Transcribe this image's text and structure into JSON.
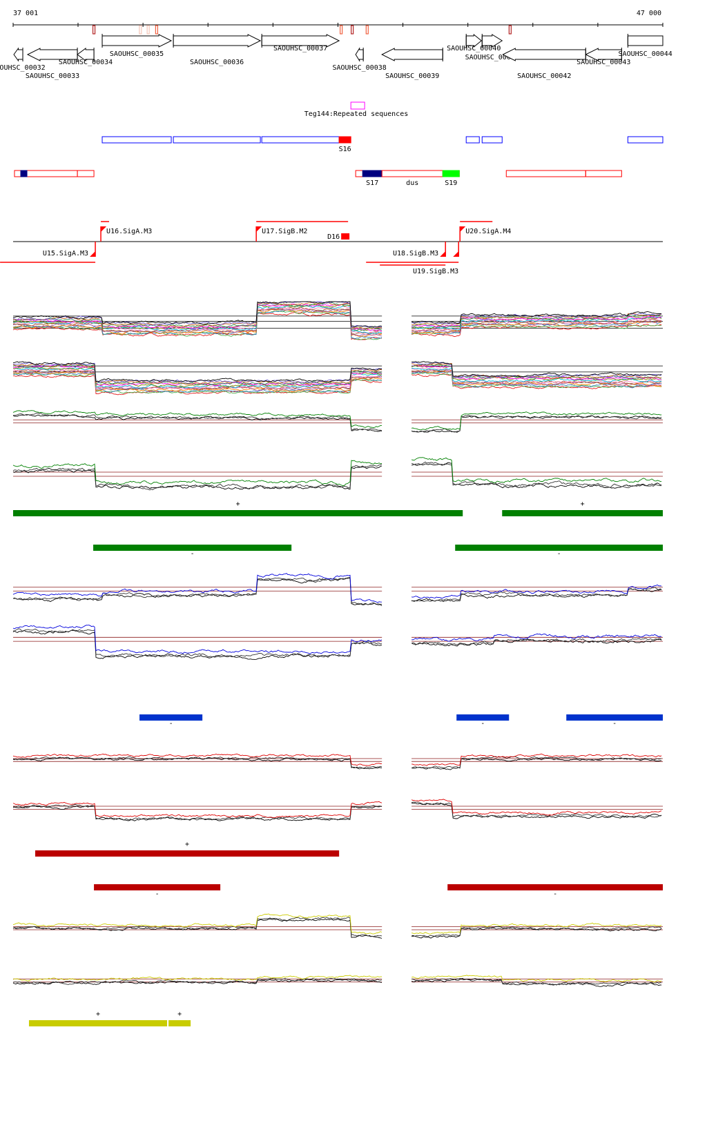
{
  "ruler": {
    "start_label": "37 001",
    "end_label": "47 000",
    "start": 37001,
    "end": 47000,
    "tick_step": 1000,
    "markers": [
      {
        "bp": 38245,
        "color": "#b22222"
      },
      {
        "bp": 38960,
        "color": "#f5c6b8"
      },
      {
        "bp": 39080,
        "color": "#f5c6b8"
      },
      {
        "bp": 39210,
        "color": "#f06040"
      },
      {
        "bp": 42050,
        "color": "#f06040"
      },
      {
        "bp": 42220,
        "color": "#b22222"
      },
      {
        "bp": 42450,
        "color": "#f06040"
      },
      {
        "bp": 44650,
        "color": "#b22222"
      }
    ]
  },
  "genes": [
    {
      "name": "SAOUHSC_00032",
      "start": 37012,
      "end": 37150,
      "strand": "-"
    },
    {
      "name": "SAOUHSC_00033",
      "start": 37224,
      "end": 37990,
      "strand": "-"
    },
    {
      "name": "SAOUHSC_00034",
      "start": 37990,
      "end": 38245,
      "strand": "-"
    },
    {
      "name": "SAOUHSC_00035",
      "start": 38372,
      "end": 39435,
      "strand": "+"
    },
    {
      "name": "SAOUHSC_00036",
      "start": 39467,
      "end": 40806,
      "strand": "+"
    },
    {
      "name": "SAOUHSC_00037",
      "start": 40828,
      "end": 42018,
      "strand": "+"
    },
    {
      "name": "SAOUHSC_00038",
      "start": 42273,
      "end": 42390,
      "strand": "-"
    },
    {
      "name": "SAOUHSC_00039",
      "start": 42677,
      "end": 43613,
      "strand": "-"
    },
    {
      "name": "SAOUHSC_00040",
      "start": 43974,
      "end": 44208,
      "strand": "+"
    },
    {
      "name": "SAOUHSC_00041",
      "start": 44219,
      "end": 44527,
      "strand": "+"
    },
    {
      "name": "SAOUHSC_00042",
      "start": 44538,
      "end": 45813,
      "strand": "-"
    },
    {
      "name": "SAOUHSC_00043",
      "start": 45813,
      "end": 46366,
      "strand": "-"
    },
    {
      "name": "SAOUHSC_00044",
      "start": 46462,
      "end": 47000,
      "strand": "+"
    }
  ],
  "repeat": {
    "label": "Teg144:Repeated sequences",
    "start": 42199,
    "end": 42411,
    "color": "#ff00ff"
  },
  "upper_segments": [
    {
      "start": 38372,
      "end": 39435,
      "label": "",
      "color": "#0000ff",
      "fill": false
    },
    {
      "start": 39467,
      "end": 40806,
      "label": "",
      "color": "#0000ff",
      "fill": false
    },
    {
      "start": 40828,
      "end": 42018,
      "label": "",
      "color": "#0000ff",
      "fill": false
    },
    {
      "start": 42018,
      "end": 42199,
      "label": "S16",
      "color": "#ff0000",
      "fill": true
    },
    {
      "start": 43974,
      "end": 44176,
      "label": "",
      "color": "#0000ff",
      "fill": false
    },
    {
      "start": 44219,
      "end": 44527,
      "label": "",
      "color": "#0000ff",
      "fill": false
    },
    {
      "start": 46462,
      "end": 47000,
      "label": "",
      "color": "#0000ff",
      "fill": false
    }
  ],
  "lower_segments": [
    {
      "start": 37022,
      "end": 37990,
      "label": "",
      "color": "#ff0000",
      "fill": false
    },
    {
      "start": 37118,
      "end": 37214,
      "label": "",
      "color": "#000080",
      "fill": true
    },
    {
      "start": 37990,
      "end": 38245,
      "label": "",
      "color": "#ff0000",
      "fill": false
    },
    {
      "start": 42273,
      "end": 43868,
      "label": "",
      "color": "#ff0000",
      "fill": false
    },
    {
      "start": 42380,
      "end": 42677,
      "label": "S17",
      "color": "#000080",
      "fill": true
    },
    {
      "start": 42677,
      "end": 43613,
      "label": "dus",
      "color": "#ff0000",
      "fill": false
    },
    {
      "start": 43613,
      "end": 43868,
      "label": "S19",
      "color": "#00ff00",
      "fill": true
    },
    {
      "start": 44591,
      "end": 45813,
      "label": "",
      "color": "#ff0000",
      "fill": false
    },
    {
      "start": 45813,
      "end": 46366,
      "label": "",
      "color": "#ff0000",
      "fill": false
    }
  ],
  "promoters": [
    {
      "label": "U15.SigA.M3",
      "bp": 38266,
      "strand": "-",
      "bar": [
        36800,
        38266
      ]
    },
    {
      "label": "U16.SigA.M3",
      "bp": 38351,
      "strand": "+",
      "bar": [
        38351,
        38478
      ]
    },
    {
      "label": "U17.SigB.M2",
      "bp": 40743,
      "strand": "+",
      "bar": [
        40743,
        42156
      ]
    },
    {
      "label": "U18.SigB.M3",
      "bp": 43655,
      "strand": "-",
      "bar": [
        42433,
        43857
      ]
    },
    {
      "label": "U19.SigB.M3",
      "bp": 43857,
      "strand": "-",
      "bar": [
        42645,
        43655
      ]
    },
    {
      "label": "U20.SigA.M4",
      "bp": 43878,
      "strand": "+",
      "bar": [
        43878,
        44378
      ]
    }
  ],
  "terminator": {
    "label": "D16",
    "start": 42050,
    "end": 42177
  },
  "view": {
    "left": [
      37001,
      42677
    ],
    "right": [
      43133,
      47000
    ]
  },
  "panels": [
    {
      "kind": "multi",
      "color": "",
      "left": [
        [
          37001,
          0.45
        ],
        [
          38372,
          0.3
        ],
        [
          40743,
          0.85
        ],
        [
          42190,
          0.2
        ]
      ],
      "right": [
        [
          43133,
          0.3
        ],
        [
          43880,
          0.5
        ],
        [
          46462,
          0.55
        ]
      ],
      "refs": [
        0.62,
        0.48,
        0.3
      ]
    },
    {
      "kind": "multi",
      "color": "",
      "left": [
        [
          37001,
          0.7
        ],
        [
          38266,
          0.25
        ],
        [
          42190,
          0.55
        ]
      ],
      "right": [
        [
          43133,
          0.72
        ],
        [
          43760,
          0.4
        ]
      ],
      "refs": [
        0.78,
        0.62
      ]
    },
    {
      "kind": "pair",
      "color": "#008000",
      "left": [
        [
          37001,
          0.8
        ],
        [
          38266,
          0.72
        ],
        [
          42190,
          0.35
        ]
      ],
      "right": [
        [
          43133,
          0.3
        ],
        [
          43880,
          0.75
        ]
      ],
      "refs": [
        0.55,
        0.45
      ]
    },
    {
      "kind": "pair",
      "color": "#008000",
      "left": [
        [
          37001,
          0.75
        ],
        [
          38266,
          0.35
        ],
        [
          42190,
          0.85
        ]
      ],
      "right": [
        [
          43133,
          0.9
        ],
        [
          43760,
          0.4
        ]
      ],
      "refs": [
        0.6,
        0.5
      ]
    },
    {
      "kind": "pair",
      "color": "#0000dd",
      "left": [
        [
          37001,
          0.35
        ],
        [
          38372,
          0.45
        ],
        [
          40743,
          0.85
        ],
        [
          42190,
          0.2
        ]
      ],
      "right": [
        [
          43133,
          0.3
        ],
        [
          43880,
          0.45
        ],
        [
          46462,
          0.6
        ]
      ],
      "refs": [
        0.55,
        0.45
      ]
    },
    {
      "kind": "pair",
      "color": "#0000dd",
      "left": [
        [
          37001,
          0.9
        ],
        [
          38266,
          0.3
        ],
        [
          42190,
          0.6
        ]
      ],
      "right": [
        [
          43133,
          0.6
        ],
        [
          44400,
          0.68
        ]
      ],
      "refs": [
        0.65,
        0.55
      ]
    },
    {
      "kind": "pair",
      "color": "#dd0000",
      "left": [
        [
          37001,
          0.6
        ],
        [
          42190,
          0.3
        ]
      ],
      "right": [
        [
          43133,
          0.3
        ],
        [
          43880,
          0.6
        ]
      ],
      "refs": [
        0.5,
        0.4
      ]
    },
    {
      "kind": "pair",
      "color": "#dd0000",
      "left": [
        [
          37001,
          0.7
        ],
        [
          38266,
          0.3
        ],
        [
          42190,
          0.7
        ]
      ],
      "right": [
        [
          43133,
          0.8
        ],
        [
          43760,
          0.4
        ]
      ],
      "refs": [
        0.6,
        0.5
      ]
    },
    {
      "kind": "pair",
      "color": "#cccc00",
      "left": [
        [
          37001,
          0.55
        ],
        [
          40743,
          0.85
        ],
        [
          42190,
          0.3
        ]
      ],
      "right": [
        [
          43133,
          0.3
        ],
        [
          43880,
          0.55
        ]
      ],
      "refs": [
        0.5,
        0.4
      ]
    },
    {
      "kind": "pair",
      "color": "#cccc00",
      "left": [
        [
          37001,
          0.55
        ],
        [
          40743,
          0.62
        ]
      ],
      "right": [
        [
          43133,
          0.62
        ],
        [
          44527,
          0.5
        ]
      ],
      "refs": [
        0.55,
        0.45
      ]
    }
  ],
  "segment_bars": [
    {
      "color": "#008000",
      "strand_label": "+",
      "ranges": [
        [
          37001,
          43921
        ],
        [
          44527,
          47000
        ]
      ]
    },
    {
      "color": "#008000",
      "strand_label": "-",
      "ranges": [
        [
          38234,
          41285
        ],
        [
          43804,
          47000
        ]
      ]
    },
    {
      "color": "#0033cc",
      "strand_label": "-",
      "ranges": [
        [
          38946,
          39914
        ],
        [
          43825,
          44633
        ],
        [
          45515,
          47000
        ]
      ]
    },
    {
      "color": "#bb0000",
      "strand_label": "+",
      "ranges": [
        [
          37341,
          42018
        ]
      ]
    },
    {
      "color": "#bb0000",
      "strand_label": "-",
      "ranges": [
        [
          38245,
          40190
        ],
        [
          43687,
          47000
        ]
      ]
    },
    {
      "color": "#c8cc00",
      "strand_label": "+",
      "ranges": [
        [
          37245,
          39371
        ],
        [
          39393,
          39733
        ]
      ]
    }
  ],
  "multi_colors": [
    "#e41a1c",
    "#4daf4a",
    "#377eb8",
    "#ff7f00",
    "#984ea3",
    "#a65628",
    "#f781bf",
    "#00bcd4",
    "#808000",
    "#ff00ff",
    "#2e8b57",
    "#d2691e",
    "#6a5acd",
    "#000000"
  ]
}
